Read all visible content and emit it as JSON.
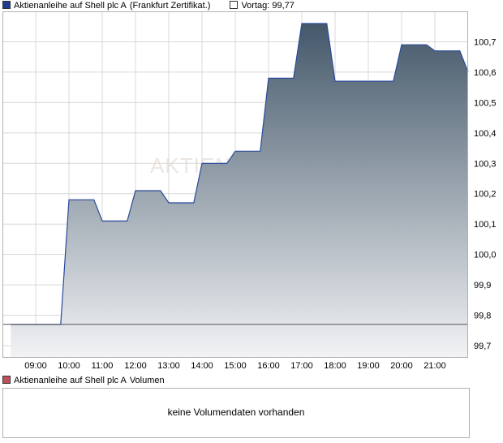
{
  "legend_main": {
    "series_color": "#1f3a93",
    "series_label": "Aktienanleihe auf Shell plc A",
    "exchange_label": "(Frankfurt Zertifikat.)",
    "prev_color": "#ffffff",
    "prev_label": "Vortag: 99,77"
  },
  "legend_volume": {
    "color": "#c0505a",
    "series_label": "Aktienanleihe auf Shell plc A",
    "volume_label": "Volumen"
  },
  "watermark": "AKTIEN",
  "volume_message": "keine Volumendaten vorhanden",
  "chart_data": {
    "type": "area",
    "x": [
      "08:15",
      "09:45",
      "10:00",
      "10:45",
      "11:00",
      "11:45",
      "12:00",
      "12:45",
      "13:00",
      "13:45",
      "14:00",
      "14:45",
      "15:00",
      "15:45",
      "16:00",
      "16:45",
      "17:00",
      "17:45",
      "18:00",
      "18:45",
      "19:00",
      "19:45",
      "20:00",
      "20:45",
      "21:00",
      "21:45",
      "22:00"
    ],
    "values": [
      99.77,
      99.77,
      100.18,
      100.18,
      100.11,
      100.11,
      100.21,
      100.21,
      100.17,
      100.17,
      100.3,
      100.3,
      100.34,
      100.34,
      100.58,
      100.58,
      100.76,
      100.76,
      100.57,
      100.57,
      100.57,
      100.57,
      100.69,
      100.69,
      100.67,
      100.67,
      100.6
    ],
    "previous_close": 99.77,
    "ylim": [
      99.66,
      100.8
    ],
    "y_ticks": [
      99.7,
      99.8,
      99.9,
      100.0,
      100.1,
      100.2,
      100.3,
      100.4,
      100.5,
      100.6,
      100.7
    ],
    "y_tick_labels": [
      "99,7",
      "99,8",
      "99,9",
      "100,0",
      "100,1",
      "100,2",
      "100,3",
      "100,4",
      "100,5",
      "100,6",
      "100,7"
    ],
    "x_range": [
      "08:00",
      "22:00"
    ],
    "x_ticks": [
      "09:00",
      "10:00",
      "11:00",
      "12:00",
      "13:00",
      "14:00",
      "15:00",
      "16:00",
      "17:00",
      "18:00",
      "19:00",
      "20:00",
      "21:00"
    ],
    "grid": true,
    "colors": {
      "line": "#2a4a9a",
      "fill_top": "#44586a",
      "fill_bottom": "#f2f3f5",
      "prev_line": "#555555",
      "grid": "#d8d8d8"
    }
  }
}
